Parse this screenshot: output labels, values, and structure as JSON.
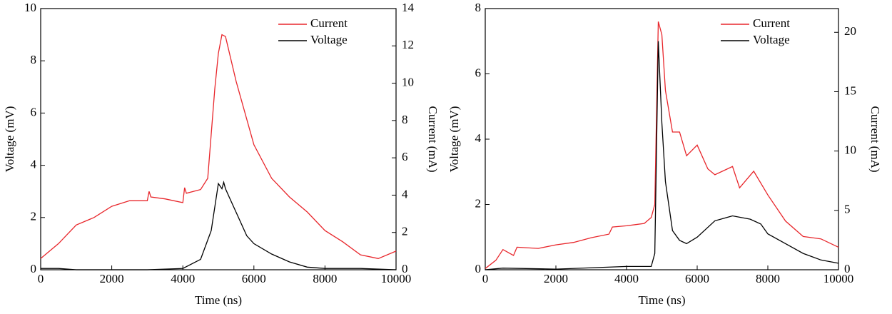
{
  "chart_data": [
    {
      "type": "line",
      "xlabel": "Time (ns)",
      "ylabel": "Voltage (mV)",
      "y2label": "Current (mA)",
      "xlim": [
        0,
        10000
      ],
      "xticks": [
        0,
        2000,
        4000,
        6000,
        8000,
        10000
      ],
      "ylim": [
        0,
        10
      ],
      "yticks": [
        0,
        2,
        4,
        6,
        8,
        10
      ],
      "y2lim": [
        0,
        14
      ],
      "y2ticks": [
        0,
        2,
        4,
        6,
        8,
        10,
        12,
        14
      ],
      "legend": "upper right",
      "series": [
        {
          "name": "Current",
          "color": "#e8262b",
          "axis": "y2",
          "x": [
            0,
            500,
            1000,
            1500,
            2000,
            2500,
            3000,
            3050,
            3100,
            3500,
            4000,
            4050,
            4100,
            4500,
            4700,
            4900,
            5000,
            5100,
            5200,
            5500,
            6000,
            6500,
            7000,
            7500,
            8000,
            8500,
            9000,
            9500,
            10000
          ],
          "values": [
            0.6,
            1.4,
            2.4,
            2.8,
            3.4,
            3.7,
            3.7,
            4.2,
            3.9,
            3.8,
            3.6,
            4.4,
            4.1,
            4.3,
            4.9,
            9.7,
            11.6,
            12.6,
            12.5,
            10.1,
            6.7,
            4.9,
            3.9,
            3.1,
            2.1,
            1.5,
            0.8,
            0.6,
            1.0
          ]
        },
        {
          "name": "Voltage",
          "color": "#000000",
          "axis": "y",
          "x": [
            0,
            500,
            1000,
            2000,
            3000,
            4000,
            4500,
            4800,
            5000,
            5100,
            5150,
            5200,
            5300,
            5500,
            5800,
            6000,
            6500,
            7000,
            7500,
            8000,
            9000,
            10000
          ],
          "values": [
            0.05,
            0.05,
            0,
            0,
            0,
            0.05,
            0.4,
            1.5,
            3.3,
            3.1,
            3.35,
            3.1,
            2.8,
            2.2,
            1.3,
            1.0,
            0.6,
            0.3,
            0.1,
            0.05,
            0.05,
            0
          ]
        }
      ]
    },
    {
      "type": "line",
      "xlabel": "Time (ns)",
      "ylabel": "Voltage (mV)",
      "y2label": "Current (mA)",
      "xlim": [
        0,
        10000
      ],
      "xticks": [
        0,
        2000,
        4000,
        6000,
        8000,
        10000
      ],
      "ylim": [
        0,
        8
      ],
      "yticks": [
        0,
        2,
        4,
        6,
        8
      ],
      "y2lim": [
        0,
        22
      ],
      "y2ticks": [
        0,
        5,
        10,
        15,
        20
      ],
      "legend": "upper right",
      "series": [
        {
          "name": "Current",
          "color": "#e8262b",
          "axis": "y2",
          "x": [
            0,
            300,
            500,
            800,
            900,
            1500,
            2000,
            2500,
            3000,
            3500,
            3600,
            4000,
            4500,
            4700,
            4800,
            4900,
            5000,
            5100,
            5300,
            5500,
            5700,
            6000,
            6300,
            6500,
            7000,
            7200,
            7600,
            8000,
            8500,
            9000,
            9500,
            10000
          ],
          "values": [
            0.1,
            0.8,
            1.7,
            1.2,
            1.9,
            1.8,
            2.1,
            2.3,
            2.7,
            3.0,
            3.6,
            3.7,
            3.9,
            4.4,
            5.5,
            20.9,
            19.8,
            15.1,
            11.6,
            11.6,
            9.6,
            10.5,
            8.5,
            8.0,
            8.7,
            6.9,
            8.3,
            6.3,
            4.1,
            2.8,
            2.6,
            1.9
          ]
        },
        {
          "name": "Voltage",
          "color": "#000000",
          "axis": "y",
          "x": [
            0,
            500,
            2000,
            4000,
            4700,
            4800,
            4900,
            5000,
            5100,
            5300,
            5500,
            5700,
            6000,
            6500,
            7000,
            7500,
            7800,
            8000,
            8500,
            9000,
            9500,
            10000
          ],
          "values": [
            0,
            0.05,
            0.02,
            0.1,
            0.1,
            0.5,
            7.0,
            4.5,
            2.7,
            1.2,
            0.9,
            0.8,
            1.0,
            1.5,
            1.65,
            1.55,
            1.4,
            1.1,
            0.8,
            0.5,
            0.3,
            0.2
          ]
        }
      ]
    }
  ]
}
